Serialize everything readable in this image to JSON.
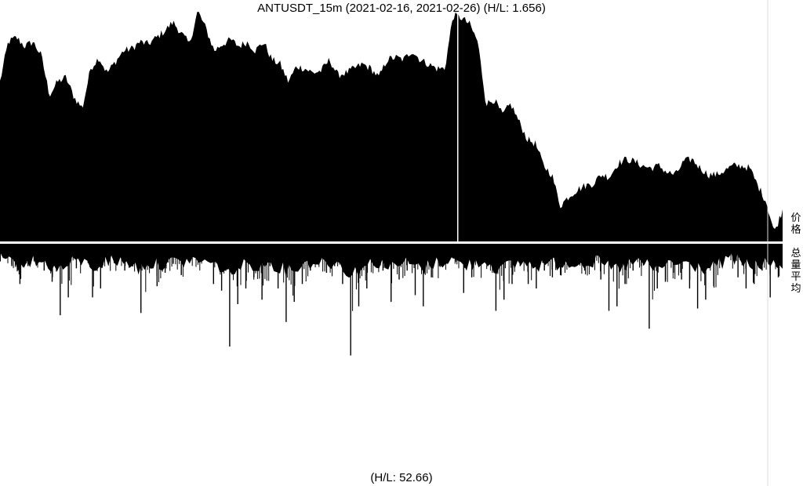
{
  "title": "ANTUSDT_15m (2021-02-16, 2021-02-26) (H/L: 1.656)",
  "footer": "(H/L: 52.66)",
  "price_axis_label": "价格",
  "volume_axis_label": "总量平均",
  "colors": {
    "fill": "#000000",
    "background": "#ffffff",
    "separator": "#ffffff",
    "edge_line": "#dddddd"
  },
  "chart_data": [
    {
      "type": "area",
      "name": "price",
      "x_range": [
        "2021-02-16",
        "2021-02-26"
      ],
      "hl_ratio": 1.656,
      "grid": false,
      "legend": "none",
      "relative_values": [
        0.68,
        0.86,
        0.88,
        0.84,
        0.86,
        0.8,
        0.62,
        0.68,
        0.7,
        0.61,
        0.56,
        0.74,
        0.79,
        0.72,
        0.77,
        0.82,
        0.83,
        0.86,
        0.85,
        0.88,
        0.91,
        0.95,
        0.9,
        0.85,
        1.0,
        0.92,
        0.82,
        0.85,
        0.87,
        0.84,
        0.86,
        0.82,
        0.86,
        0.78,
        0.76,
        0.68,
        0.75,
        0.74,
        0.72,
        0.73,
        0.78,
        0.71,
        0.72,
        0.74,
        0.76,
        0.74,
        0.7,
        0.78,
        0.79,
        0.78,
        0.82,
        0.78,
        0.76,
        0.74,
        0.74,
        0.98,
        0.97,
        0.94,
        0.86,
        0.58,
        0.6,
        0.53,
        0.58,
        0.5,
        0.42,
        0.4,
        0.3,
        0.26,
        0.12,
        0.16,
        0.19,
        0.21,
        0.22,
        0.26,
        0.25,
        0.31,
        0.33,
        0.32,
        0.3,
        0.29,
        0.3,
        0.27,
        0.26,
        0.32,
        0.33,
        0.29,
        0.26,
        0.26,
        0.28,
        0.3,
        0.3,
        0.29,
        0.21,
        0.14,
        0.0,
        0.1
      ]
    },
    {
      "type": "bar",
      "name": "volume",
      "hl_ratio": 52.66,
      "grid": false,
      "legend": "none",
      "relative_values": [
        0.0,
        0.1,
        0.18,
        0.1,
        0.09,
        0.12,
        0.17,
        0.32,
        0.24,
        0.11,
        0.05,
        0.24,
        0.2,
        0.08,
        0.06,
        0.12,
        0.1,
        0.31,
        0.1,
        0.19,
        0.13,
        0.09,
        0.14,
        0.05,
        0.07,
        0.04,
        0.18,
        0.21,
        0.46,
        0.27,
        0.2,
        0.15,
        0.25,
        0.1,
        0.2,
        0.35,
        0.26,
        0.18,
        0.12,
        0.07,
        0.13,
        0.1,
        0.18,
        0.5,
        0.28,
        0.2,
        0.09,
        0.12,
        0.26,
        0.16,
        0.12,
        0.23,
        0.28,
        0.15,
        0.1,
        0.01,
        0.08,
        0.22,
        0.15,
        0.07,
        0.1,
        0.3,
        0.25,
        0.18,
        0.1,
        0.18,
        0.2,
        0.12,
        0.15,
        0.14,
        0.08,
        0.1,
        0.12,
        0.09,
        0.16,
        0.3,
        0.28,
        0.18,
        0.12,
        0.1,
        0.38,
        0.2,
        0.17,
        0.13,
        0.16,
        0.2,
        0.29,
        0.25,
        0.19,
        0.09,
        0.01,
        0.15,
        0.2,
        0.18,
        0.12,
        0.24,
        0.15
      ]
    }
  ]
}
